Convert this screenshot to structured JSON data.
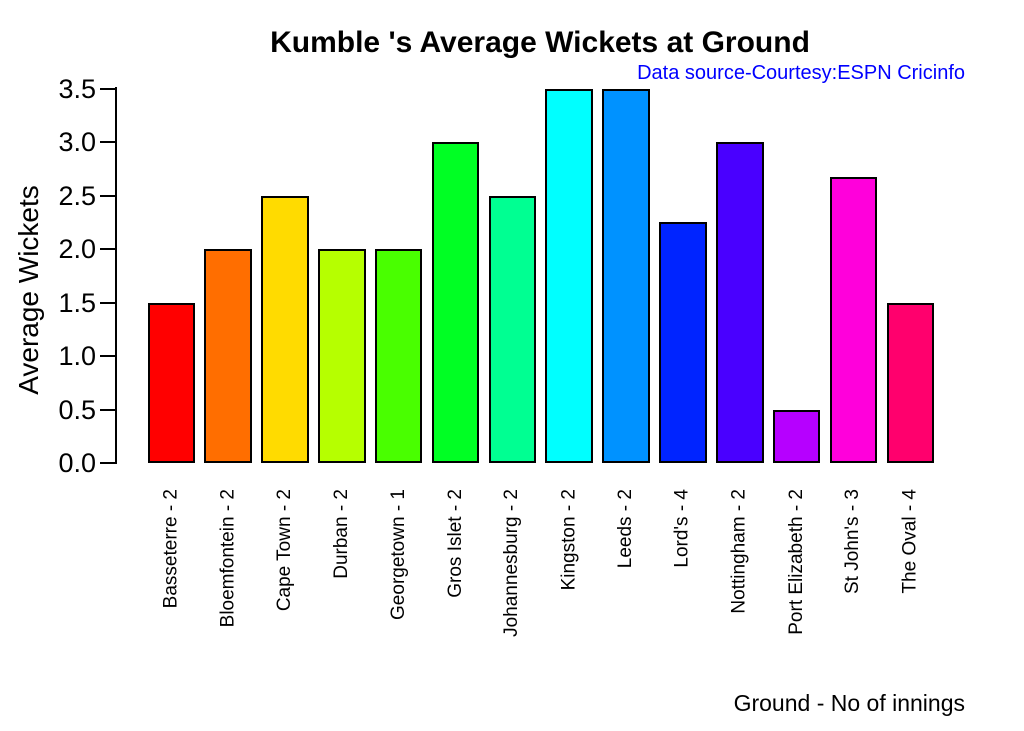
{
  "chart_data": {
    "type": "bar",
    "title": "Kumble 's Average Wickets at Ground",
    "annotation": "Data source-Courtesy:ESPN Cricinfo",
    "xlabel": "Ground - No of innings",
    "ylabel": "Average Wickets",
    "ylim": [
      0,
      3.5
    ],
    "grid": false,
    "legend": "none",
    "background": "#FFFFFF",
    "axis_color": "#000000",
    "text_color": "#000000",
    "annotation_color": "#0000FF",
    "bar_border_color": "#000000",
    "yticks": {
      "values": [
        0.0,
        0.5,
        1.0,
        1.5,
        2.0,
        2.5,
        3.0,
        3.5
      ],
      "labels": [
        "0.0",
        "0.5",
        "1.0",
        "1.5",
        "2.0",
        "2.5",
        "3.0",
        "3.5"
      ]
    },
    "categories": [
      "Basseterre - 2",
      "Bloemfontein - 2",
      "Cape Town - 2",
      "Durban - 2",
      "Georgetown - 1",
      "Gros Islet - 2",
      "Johannesburg - 2",
      "Kingston - 2",
      "Leeds - 2",
      "Lord's - 4",
      "Nottingham - 2",
      "Port Elizabeth - 2",
      "St John's - 3",
      "The Oval - 4"
    ],
    "values": [
      1.5,
      2.0,
      2.5,
      2.0,
      2.0,
      3.0,
      2.5,
      3.5,
      3.5,
      2.25,
      3.0,
      0.5,
      2.67,
      1.5
    ],
    "bar_colors": [
      "#FF0000",
      "#FF6E00",
      "#FFDB00",
      "#B6FF00",
      "#49FF00",
      "#00FF24",
      "#00FF92",
      "#00FFFF",
      "#0092FF",
      "#0024FF",
      "#4900FF",
      "#B600FF",
      "#FF00DB",
      "#FF006D"
    ]
  }
}
